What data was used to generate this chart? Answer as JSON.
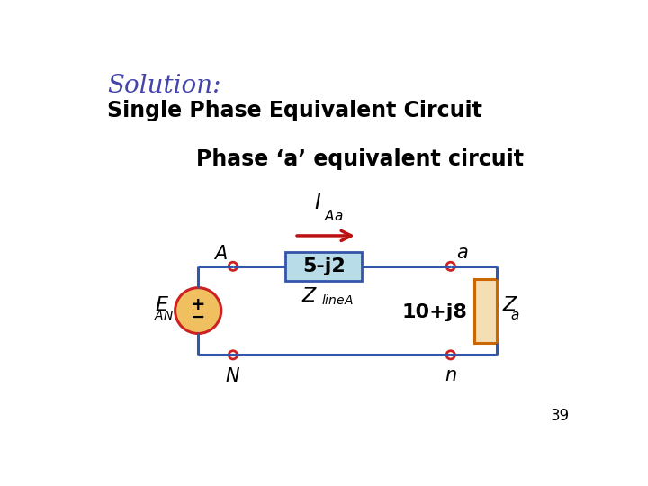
{
  "title_solution": "Solution:",
  "title_subtitle": "Single Phase Equivalent Circuit",
  "title_circuit": "Phase ‘a’ equivalent circuit",
  "solution_color": "#4444aa",
  "subtitle_color": "#000000",
  "circuit_title_color": "#000000",
  "bg_color": "#ffffff",
  "wire_color": "#3355aa",
  "node_color": "#cc2222",
  "voltage_source_fill": "#f0c060",
  "impedance_box_fill": "#b8dce8",
  "impedance_box_edge": "#3355aa",
  "load_box_fill": "#f5deb3",
  "load_box_edge": "#cc6600",
  "arrow_color": "#bb1111",
  "label_impedance": "5-j2",
  "label_load_value": "10+j8",
  "page_number": "39",
  "wire_linewidth": 2.2
}
